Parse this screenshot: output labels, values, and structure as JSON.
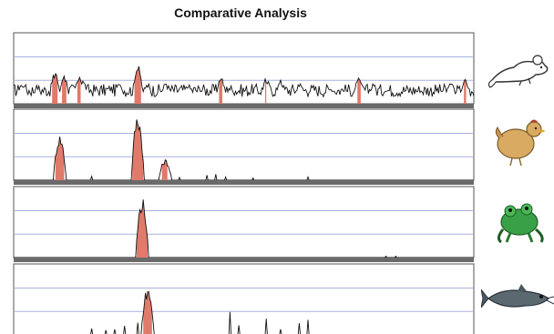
{
  "title": "Comparative Analysis",
  "colors": {
    "fill": "#e07a6a",
    "trace": "#111111",
    "frame": "#555555",
    "separator": "#6a6a6a",
    "gridline": "#aab0e0"
  },
  "tracks": [
    {
      "species": "mouse",
      "icon": "mouse-icon",
      "peaks": [
        [
          0.02,
          0.3
        ],
        [
          0.05,
          0.22
        ],
        [
          0.09,
          0.48
        ],
        [
          0.11,
          0.4
        ],
        [
          0.13,
          0.25
        ],
        [
          0.14,
          0.4
        ],
        [
          0.15,
          0.35
        ],
        [
          0.21,
          0.18
        ],
        [
          0.23,
          0.35
        ],
        [
          0.27,
          0.62
        ],
        [
          0.29,
          0.3
        ],
        [
          0.33,
          0.3
        ],
        [
          0.38,
          0.25
        ],
        [
          0.41,
          0.22
        ],
        [
          0.45,
          0.4
        ],
        [
          0.47,
          0.25
        ],
        [
          0.52,
          0.18
        ],
        [
          0.55,
          0.38
        ],
        [
          0.58,
          0.35
        ],
        [
          0.62,
          0.3
        ],
        [
          0.65,
          0.25
        ],
        [
          0.69,
          0.22
        ],
        [
          0.72,
          0.2
        ],
        [
          0.75,
          0.42
        ],
        [
          0.78,
          0.28
        ],
        [
          0.81,
          0.2
        ],
        [
          0.85,
          0.18
        ],
        [
          0.88,
          0.18
        ],
        [
          0.92,
          0.18
        ],
        [
          0.95,
          0.35
        ],
        [
          0.98,
          0.38
        ]
      ],
      "baseline": 0.28
    },
    {
      "species": "chicken",
      "icon": "chicken-icon",
      "peaks": [
        [
          0.1,
          0.65
        ],
        [
          0.27,
          0.95
        ],
        [
          0.33,
          0.3
        ]
      ],
      "minor": [
        [
          0.17,
          0.06
        ],
        [
          0.36,
          0.05
        ],
        [
          0.42,
          0.08
        ],
        [
          0.44,
          0.1
        ],
        [
          0.46,
          0.06
        ],
        [
          0.52,
          0.04
        ],
        [
          0.64,
          0.05
        ]
      ]
    },
    {
      "species": "frog",
      "icon": "frog-icon",
      "peaks": [
        [
          0.28,
          0.85
        ]
      ],
      "minor": [
        [
          0.81,
          0.02
        ],
        [
          0.83,
          0.02
        ]
      ]
    },
    {
      "species": "fish",
      "icon": "fish-icon",
      "peaks": [
        [
          0.29,
          0.68
        ]
      ],
      "minor": [
        [
          0.17,
          0.1
        ],
        [
          0.2,
          0.08
        ],
        [
          0.22,
          0.1
        ],
        [
          0.24,
          0.15
        ],
        [
          0.27,
          0.2
        ],
        [
          0.47,
          0.35
        ],
        [
          0.49,
          0.15
        ],
        [
          0.55,
          0.25
        ],
        [
          0.58,
          0.1
        ],
        [
          0.62,
          0.18
        ],
        [
          0.64,
          0.25
        ]
      ]
    }
  ]
}
